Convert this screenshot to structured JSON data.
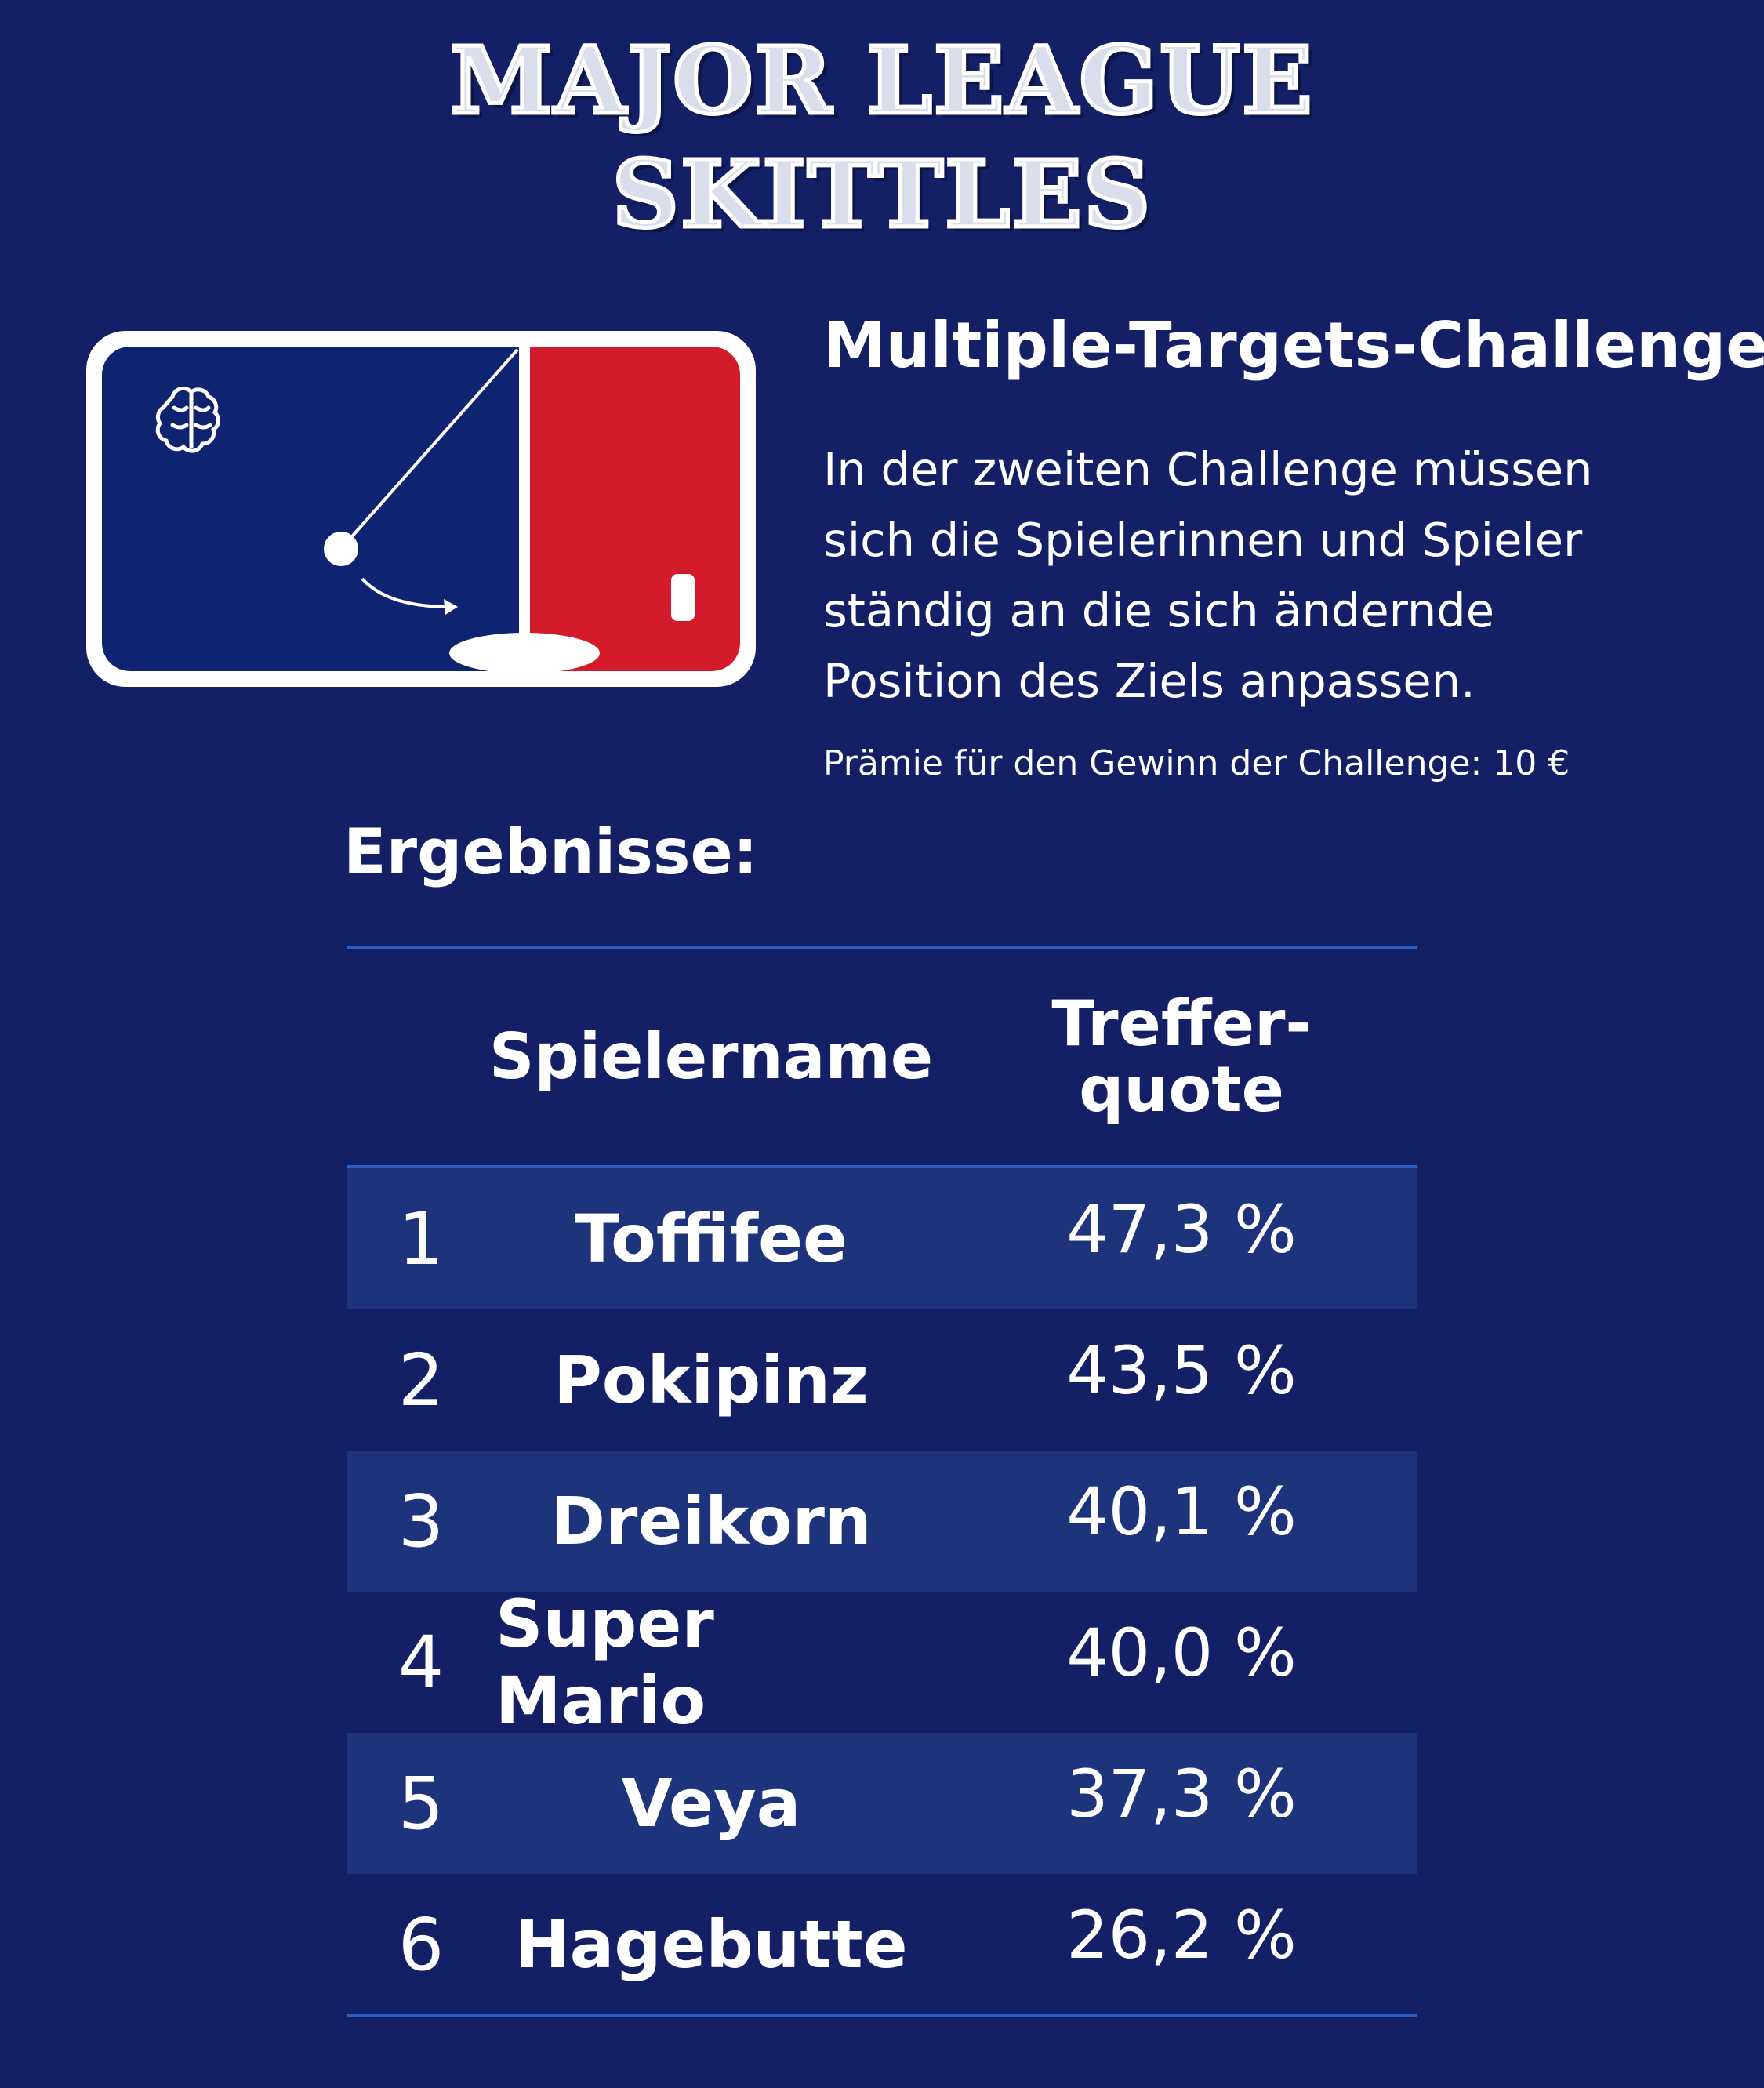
{
  "brand": {
    "line1": "MAJOR LEAGUE",
    "line2": "SKITTLES"
  },
  "logo": {
    "icon": "pendulum-logo-icon",
    "brain_icon": "brain-icon",
    "colors": {
      "left": "#0f2470",
      "right": "#d41b2c",
      "border": "#ffffff"
    }
  },
  "challenge": {
    "title": "Multiple-Targets-Challenge",
    "description_lines": [
      "In der zweiten Challenge müssen",
      "sich die Spielerinnen und Spieler",
      "ständig an die sich ändernde",
      "Position des Ziels anpassen."
    ],
    "prize": "Prämie für den Gewinn der Challenge: 10 €"
  },
  "results": {
    "title": "Ergebnisse:",
    "headers": {
      "rank": "",
      "name": "Spielername",
      "quote_line1": "Treffer-",
      "quote_line2": "quote"
    },
    "rows": [
      {
        "rank": "1",
        "name": "Toffifee",
        "quote": "47,3 %"
      },
      {
        "rank": "2",
        "name": "Pokipinz",
        "quote": "43,5 %"
      },
      {
        "rank": "3",
        "name": "Dreikorn",
        "quote": "40,1 %"
      },
      {
        "rank": "4",
        "name": "Super Mario",
        "quote": "40,0 %"
      },
      {
        "rank": "5",
        "name": "Veya",
        "quote": "37,3 %"
      },
      {
        "rank": "6",
        "name": "Hagebutte",
        "quote": "26,2 %"
      }
    ]
  },
  "colors": {
    "background": "#132066",
    "row_shade": "#1d347d",
    "rule": "#2e5fc0"
  }
}
